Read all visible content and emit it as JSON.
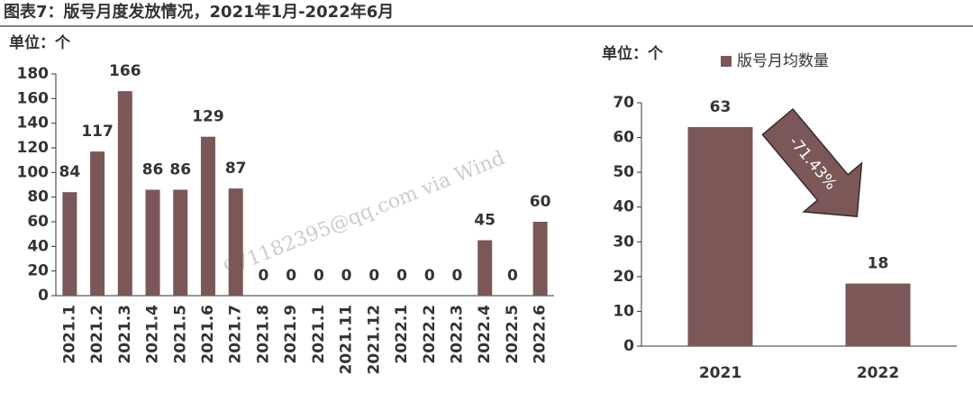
{
  "figure_title": "图表7：版号月度发放情况，2021年1月-2022年6月",
  "watermark": "971182395@qq.com via Wind",
  "chart_data": [
    {
      "type": "bar",
      "unit_label": "单位：个",
      "categories": [
        "2021.1",
        "2021.2",
        "2021.3",
        "2021.4",
        "2021.5",
        "2021.6",
        "2021.7",
        "2021.8",
        "2021.9",
        "2021.1",
        "2021.11",
        "2021.12",
        "2022.1",
        "2022.2",
        "2022.3",
        "2022.4",
        "2022.5",
        "2022.6"
      ],
      "values": [
        84,
        117,
        166,
        86,
        86,
        129,
        87,
        0,
        0,
        0,
        0,
        0,
        0,
        0,
        0,
        45,
        0,
        60
      ],
      "color": "#7b5757",
      "ylim": [
        0,
        180
      ],
      "yticks": [
        0,
        20,
        40,
        60,
        80,
        100,
        120,
        140,
        160,
        180
      ]
    },
    {
      "type": "bar",
      "unit_label": "单位：个",
      "categories": [
        "2021",
        "2022"
      ],
      "series": [
        {
          "name": "版号月均数量",
          "color": "#7b5757",
          "values": [
            63,
            18
          ]
        }
      ],
      "ylim": [
        0,
        70
      ],
      "yticks": [
        0,
        10,
        20,
        30,
        40,
        50,
        60,
        70
      ],
      "annotation": "-71.43%"
    }
  ]
}
